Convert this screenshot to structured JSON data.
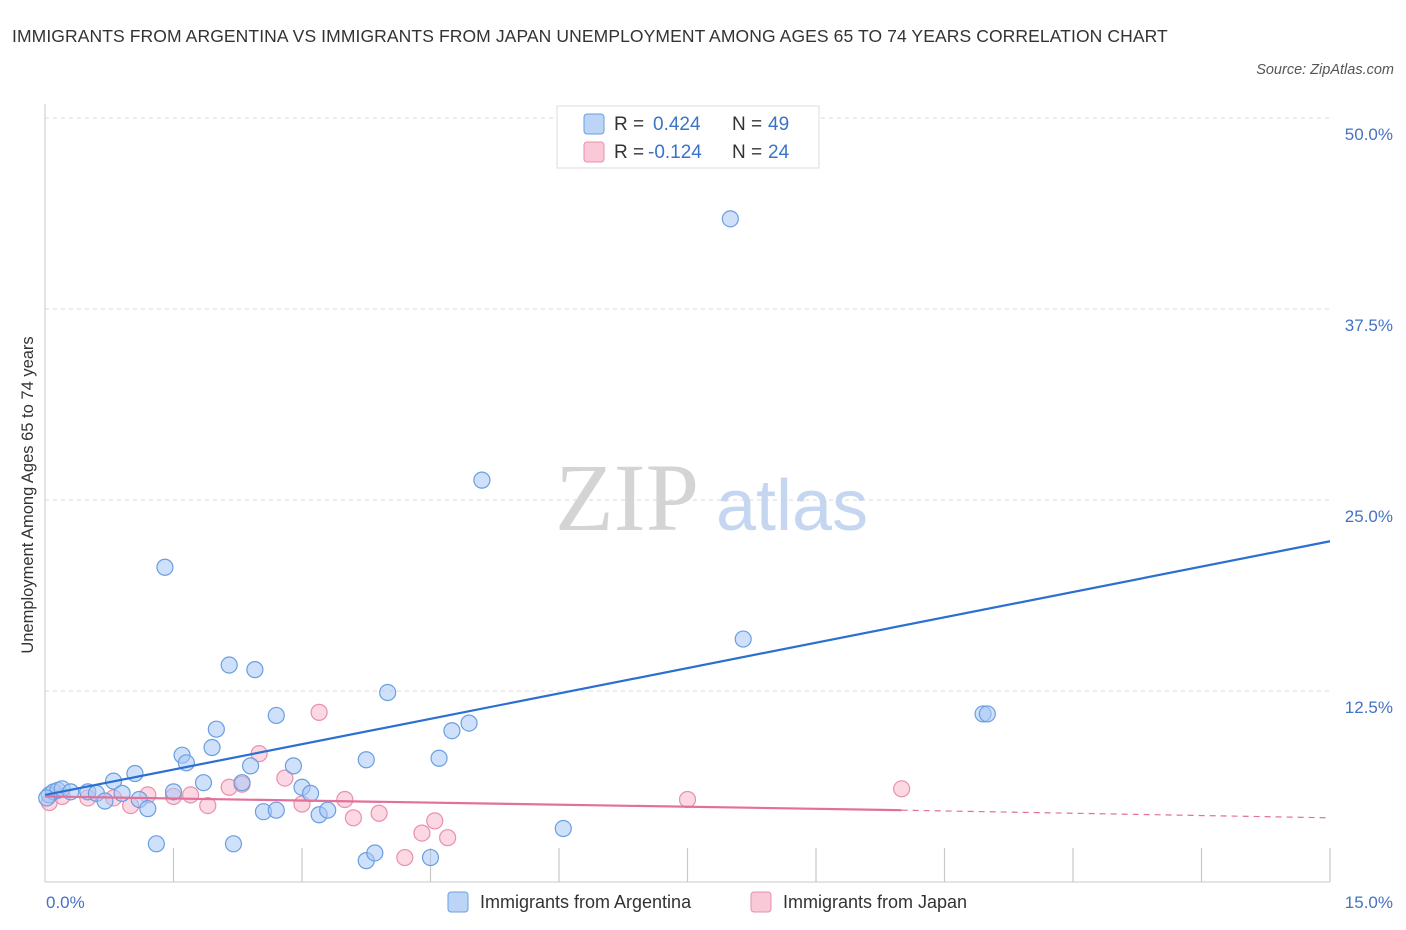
{
  "title": "IMMIGRANTS FROM ARGENTINA VS IMMIGRANTS FROM JAPAN UNEMPLOYMENT AMONG AGES 65 TO 74 YEARS CORRELATION CHART",
  "source": "Source: ZipAtlas.com",
  "watermark": {
    "zip": "ZIP",
    "atlas": "atlas"
  },
  "colors": {
    "argentina_fill": "#a8c8f5",
    "argentina_stroke": "#6a9ee0",
    "argentina_line": "#2b6fd1",
    "japan_fill": "#f7b8cb",
    "japan_stroke": "#ea8fad",
    "japan_line": "#e2709a",
    "tick_label": "#4472c4",
    "grid": "#d9d9d9"
  },
  "legend": {
    "r_label": "R =",
    "n_label": "N =",
    "rows": [
      {
        "r": "0.424",
        "n": "49"
      },
      {
        "r": "-0.124",
        "n": "24"
      }
    ]
  },
  "chart_data": {
    "type": "scatter",
    "title": "IMMIGRANTS FROM ARGENTINA VS IMMIGRANTS FROM JAPAN UNEMPLOYMENT AMONG AGES 65 TO 74 YEARS CORRELATION CHART",
    "xlabel": "",
    "ylabel": "Unemployment Among Ages 65 to 74 years",
    "xlim": [
      0,
      15
    ],
    "ylim": [
      0,
      50
    ],
    "x_tick_labels": [
      "0.0%",
      "15.0%"
    ],
    "y_ticks": [
      12.5,
      25,
      37.5,
      50
    ],
    "y_tick_labels": [
      "12.5%",
      "25.0%",
      "37.5%",
      "50.0%"
    ],
    "grid": true,
    "legend_position": "top-center",
    "series": [
      {
        "name": "Immigrants from Argentina",
        "r": 0.424,
        "n": 49,
        "trend": {
          "x": [
            0,
            15
          ],
          "y": [
            5.7,
            22.3
          ]
        },
        "points": [
          [
            0.05,
            5.7
          ],
          [
            0.1,
            5.9
          ],
          [
            0.15,
            6.0
          ],
          [
            0.2,
            6.1
          ],
          [
            0.3,
            5.9
          ],
          [
            0.5,
            5.9
          ],
          [
            0.6,
            5.8
          ],
          [
            0.7,
            5.3
          ],
          [
            0.8,
            6.6
          ],
          [
            0.9,
            5.8
          ],
          [
            1.05,
            7.1
          ],
          [
            1.1,
            5.4
          ],
          [
            1.2,
            4.8
          ],
          [
            1.3,
            2.5
          ],
          [
            1.4,
            20.6
          ],
          [
            1.5,
            5.9
          ],
          [
            1.6,
            8.3
          ],
          [
            1.65,
            7.8
          ],
          [
            1.85,
            6.5
          ],
          [
            1.95,
            8.8
          ],
          [
            2.0,
            10.0
          ],
          [
            2.15,
            14.2
          ],
          [
            2.2,
            2.5
          ],
          [
            2.3,
            6.5
          ],
          [
            2.4,
            7.6
          ],
          [
            2.45,
            13.9
          ],
          [
            2.55,
            4.6
          ],
          [
            2.7,
            4.7
          ],
          [
            2.7,
            10.9
          ],
          [
            2.9,
            7.6
          ],
          [
            3.0,
            6.2
          ],
          [
            3.1,
            5.8
          ],
          [
            3.2,
            4.4
          ],
          [
            3.3,
            4.7
          ],
          [
            3.75,
            1.4
          ],
          [
            3.75,
            8.0
          ],
          [
            3.85,
            1.9
          ],
          [
            4.0,
            12.4
          ],
          [
            4.5,
            1.6
          ],
          [
            4.6,
            8.1
          ],
          [
            4.75,
            9.9
          ],
          [
            4.95,
            10.4
          ],
          [
            5.1,
            26.3
          ],
          [
            6.05,
            3.5
          ],
          [
            8.0,
            43.4
          ],
          [
            8.15,
            15.9
          ],
          [
            10.95,
            11.0
          ],
          [
            11.0,
            11.0
          ],
          [
            0.02,
            5.5
          ]
        ]
      },
      {
        "name": "Immigrants from Japan",
        "r": -0.124,
        "n": 24,
        "trend": {
          "x": [
            0,
            10.0
          ],
          "y": [
            5.6,
            4.7
          ]
        },
        "trend_dashed": {
          "x": [
            10.0,
            15
          ],
          "y": [
            4.7,
            4.2
          ]
        },
        "points": [
          [
            0.05,
            5.2
          ],
          [
            0.2,
            5.6
          ],
          [
            0.5,
            5.5
          ],
          [
            0.8,
            5.5
          ],
          [
            1.0,
            5.0
          ],
          [
            1.2,
            5.7
          ],
          [
            1.5,
            5.6
          ],
          [
            1.7,
            5.7
          ],
          [
            1.9,
            5.0
          ],
          [
            2.15,
            6.2
          ],
          [
            2.3,
            6.4
          ],
          [
            2.5,
            8.4
          ],
          [
            2.8,
            6.8
          ],
          [
            3.0,
            5.1
          ],
          [
            3.2,
            11.1
          ],
          [
            3.5,
            5.4
          ],
          [
            3.6,
            4.2
          ],
          [
            3.9,
            4.5
          ],
          [
            4.2,
            1.6
          ],
          [
            4.4,
            3.2
          ],
          [
            4.55,
            4.0
          ],
          [
            4.7,
            2.9
          ],
          [
            7.5,
            5.4
          ],
          [
            10.0,
            6.1
          ]
        ]
      }
    ]
  },
  "bottom_legend": [
    "Immigrants from Argentina",
    "Immigrants from Japan"
  ]
}
